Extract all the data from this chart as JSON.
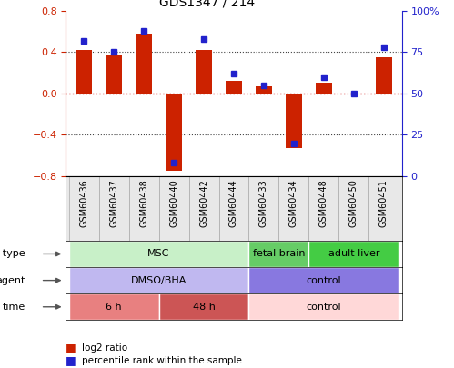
{
  "title": "GDS1347 / 214",
  "samples": [
    "GSM60436",
    "GSM60437",
    "GSM60438",
    "GSM60440",
    "GSM60442",
    "GSM60444",
    "GSM60433",
    "GSM60434",
    "GSM60448",
    "GSM60450",
    "GSM60451"
  ],
  "log2_ratio": [
    0.42,
    0.38,
    0.58,
    -0.75,
    0.42,
    0.12,
    0.07,
    -0.53,
    0.1,
    0.0,
    0.35
  ],
  "percentile_rank": [
    82,
    75,
    88,
    8,
    83,
    62,
    55,
    20,
    60,
    50,
    78
  ],
  "cell_type_groups": [
    {
      "label": "MSC",
      "start": 0,
      "end": 5,
      "color": "#c8f0c8"
    },
    {
      "label": "fetal brain",
      "start": 6,
      "end": 7,
      "color": "#66cc66"
    },
    {
      "label": "adult liver",
      "start": 8,
      "end": 10,
      "color": "#44cc44"
    }
  ],
  "agent_groups": [
    {
      "label": "DMSO/BHA",
      "start": 0,
      "end": 5,
      "color": "#c0b8f0"
    },
    {
      "label": "control",
      "start": 6,
      "end": 10,
      "color": "#8878e0"
    }
  ],
  "time_groups": [
    {
      "label": "6 h",
      "start": 0,
      "end": 2,
      "color": "#e88080"
    },
    {
      "label": "48 h",
      "start": 3,
      "end": 5,
      "color": "#cc5555"
    },
    {
      "label": "control",
      "start": 6,
      "end": 10,
      "color": "#ffd8d8"
    }
  ],
  "ylim_left": [
    -0.8,
    0.8
  ],
  "ylim_right": [
    0,
    100
  ],
  "yticks_left": [
    -0.8,
    -0.4,
    0.0,
    0.4,
    0.8
  ],
  "yticks_right": [
    0,
    25,
    50,
    75,
    100
  ],
  "bar_color": "#cc2200",
  "dot_color": "#2222cc",
  "zero_line_color": "#cc0000",
  "grid_color": "#444444",
  "legend_items": [
    {
      "label": "log2 ratio",
      "color": "#cc2200"
    },
    {
      "label": "percentile rank within the sample",
      "color": "#2222cc"
    }
  ]
}
